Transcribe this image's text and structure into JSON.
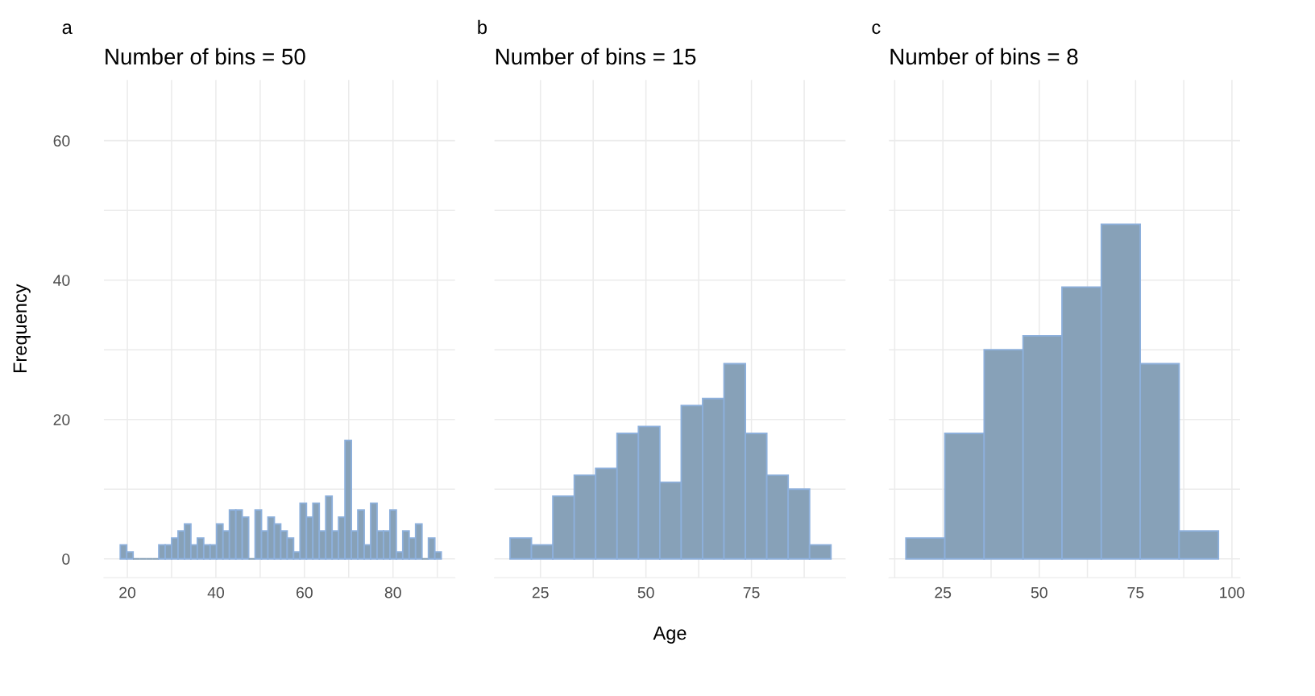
{
  "chart_data": [
    {
      "type": "histogram",
      "title": "Number of bins = 50",
      "ylabel": "Frequency",
      "annotations": [
        "a"
      ],
      "color": "#87a1b8",
      "bins": [
        18.4,
        19.85,
        21.3,
        22.75,
        24.2,
        25.65,
        27.1,
        28.55,
        30.0,
        31.45,
        32.9,
        34.35,
        35.8,
        37.25,
        38.7,
        40.15,
        41.6,
        43.05,
        44.5,
        45.95,
        47.4,
        48.85,
        50.3,
        51.75,
        53.2,
        54.65,
        56.1,
        57.55,
        59.0,
        60.45,
        61.9,
        63.35,
        64.8,
        66.25,
        67.7,
        69.15,
        70.6,
        72.05,
        73.5,
        74.95,
        76.4,
        77.85,
        79.3,
        80.75,
        82.2,
        83.65,
        85.1,
        86.55,
        88.0,
        89.45,
        90.9
      ],
      "values": [
        2,
        1,
        0,
        0,
        0,
        0,
        2,
        2,
        3,
        4,
        5,
        2,
        3,
        2,
        2,
        5,
        4,
        7,
        7,
        6,
        0,
        7,
        4,
        6,
        5,
        4,
        3,
        1,
        8,
        6,
        8,
        4,
        9,
        4,
        6,
        17,
        4,
        7,
        2,
        8,
        4,
        4,
        7,
        1,
        4,
        3,
        5,
        0,
        3,
        1
      ],
      "xlim": [
        14.7,
        94
      ],
      "xticks": [
        20,
        {
          "value": 30,
          "label": null
        },
        40,
        {
          "value": 50,
          "label": null
        },
        60,
        {
          "value": 70,
          "label": null
        },
        80,
        {
          "value": 90,
          "label": null
        }
      ],
      "ylim": [
        -2.7,
        68.7
      ],
      "yticks": [
        0,
        {
          "value": 10,
          "label": null
        },
        20,
        {
          "value": 30,
          "label": null
        },
        40,
        {
          "value": 50,
          "label": null
        },
        60
      ],
      "grid": true
    },
    {
      "type": "histogram",
      "title": "Number of bins = 15",
      "xlabel": "Age",
      "annotations": [
        "b"
      ],
      "color": "#87a1b8",
      "tick_labels": "x",
      "bins": [
        17.8,
        22.87,
        27.94,
        33.01,
        38.08,
        43.15,
        48.22,
        53.29,
        58.36,
        63.43,
        68.5,
        73.57,
        78.64,
        83.71,
        88.78,
        93.85
      ],
      "values": [
        3,
        2,
        9,
        12,
        13,
        18,
        19,
        11,
        22,
        23,
        28,
        18,
        12,
        10,
        2
      ],
      "xlim": [
        14.1,
        97.3
      ],
      "xticks": [
        25,
        {
          "value": 37.5,
          "label": null
        },
        50,
        {
          "value": 62.5,
          "label": null
        },
        75,
        {
          "value": 87.5,
          "label": null
        }
      ],
      "ylim": [
        -2.7,
        68.7
      ],
      "yticks": [
        0,
        {
          "value": 10,
          "label": null
        },
        20,
        {
          "value": 30,
          "label": null
        },
        40,
        {
          "value": 50,
          "label": null
        },
        60
      ],
      "grid": true
    },
    {
      "type": "histogram",
      "title": "Number of bins = 8",
      "annotations": [
        "c"
      ],
      "color": "#87a1b8",
      "tick_labels": "x",
      "bins": [
        15.4,
        25.5,
        35.7,
        45.8,
        55.9,
        66.1,
        76.2,
        86.3,
        96.5
      ],
      "values": [
        3,
        18,
        30,
        32,
        39,
        48,
        28,
        4
      ],
      "xlim": [
        11.0,
        102.1
      ],
      "xticks": [
        {
          "value": 12.5,
          "label": null
        },
        25,
        {
          "value": 37.5,
          "label": null
        },
        50,
        {
          "value": 62.5,
          "label": null
        },
        75,
        {
          "value": 87.5,
          "label": null
        },
        100
      ],
      "ylim": [
        -2.7,
        68.7
      ],
      "yticks": [
        0,
        {
          "value": 10,
          "label": null
        },
        20,
        {
          "value": 30,
          "label": null
        },
        40,
        {
          "value": 50,
          "label": null
        },
        60
      ],
      "grid": true
    }
  ]
}
